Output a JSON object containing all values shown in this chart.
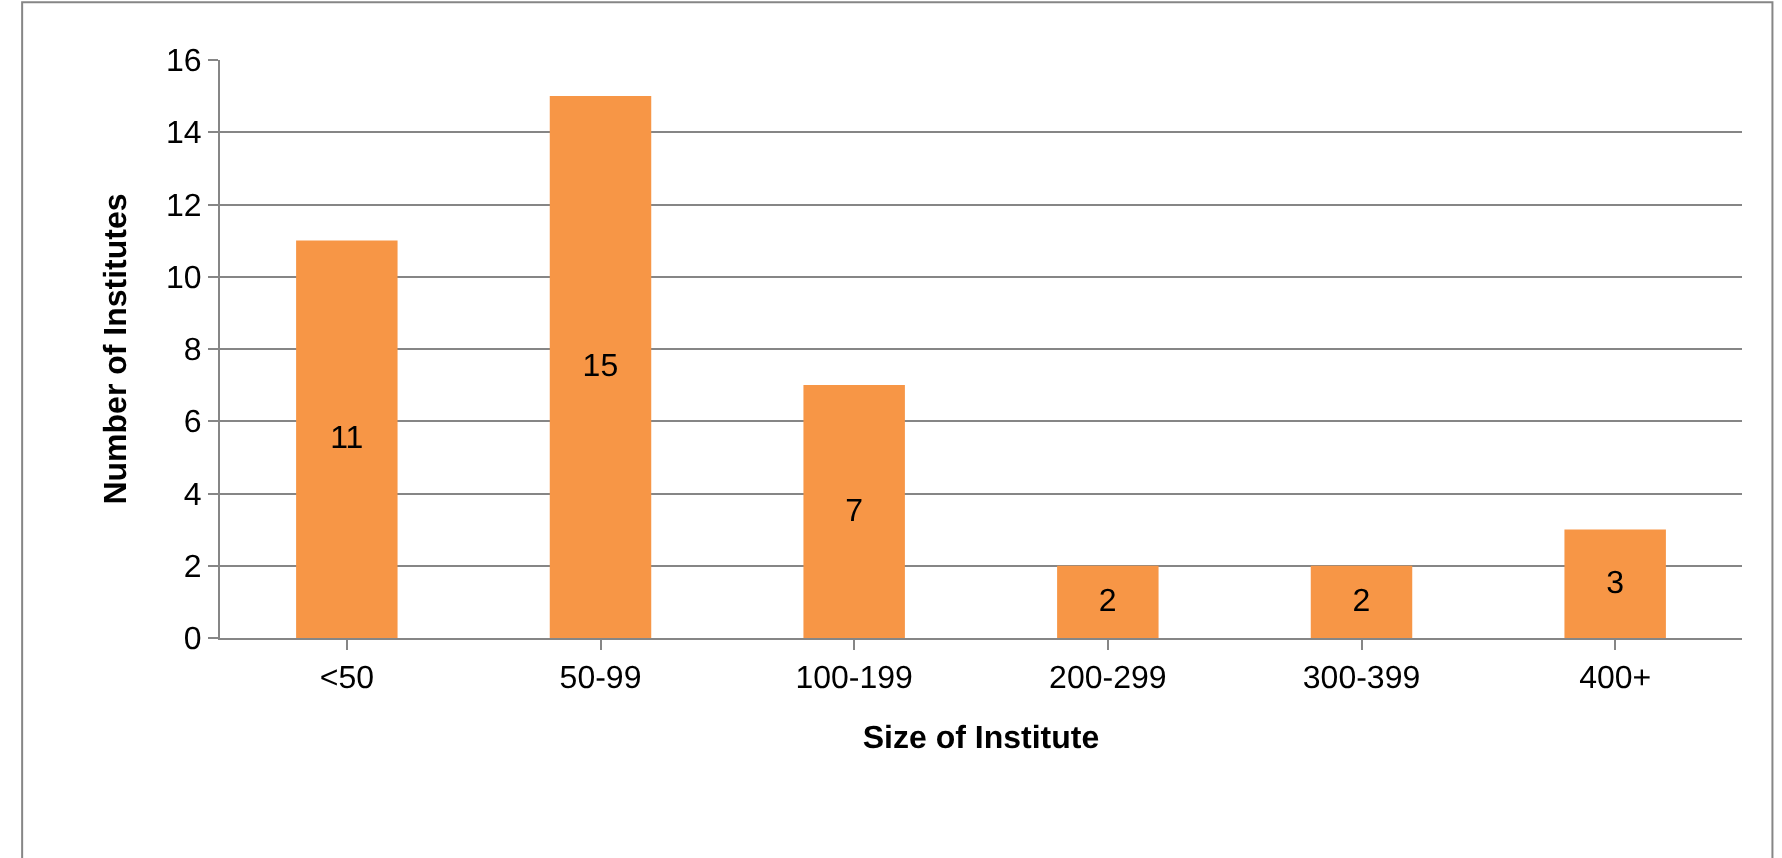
{
  "chart_data": {
    "type": "bar",
    "xlabel": "Size of Institute",
    "ylabel": "Number of Institutes",
    "categories": [
      "<50",
      "50-99",
      "100-199",
      "200-299",
      "300-399",
      "400+"
    ],
    "values": [
      11,
      15,
      7,
      2,
      2,
      3
    ],
    "color": "#f79646",
    "ylim": [
      0,
      16
    ],
    "yticks": [
      0,
      2,
      4,
      6,
      8,
      10,
      12,
      14,
      16
    ],
    "grid": "y",
    "data_labels": true
  }
}
